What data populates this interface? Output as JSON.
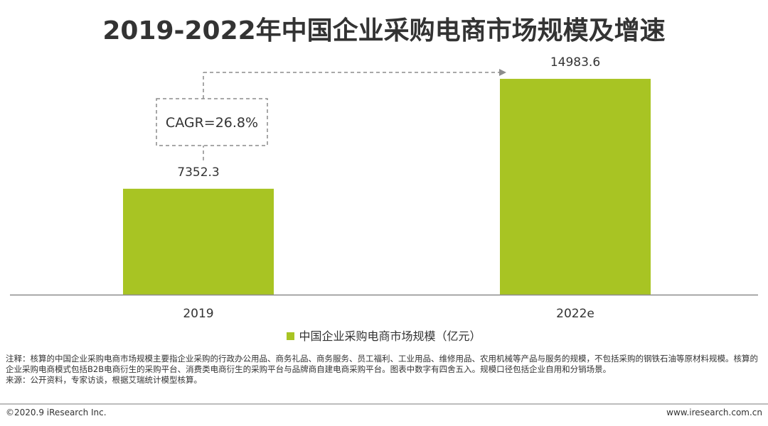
{
  "title": "2019-2022年中国企业采购电商市场规模及增速",
  "chart_data": {
    "type": "bar",
    "categories": [
      "2019",
      "2022e"
    ],
    "series": [
      {
        "name": "中国企业采购电商市场规模（亿元）",
        "values": [
          7352.3,
          14983.6
        ],
        "color": "#a8c423"
      }
    ],
    "data_labels": [
      "7352.3",
      "14983.6"
    ],
    "annotation": "CAGR=26.8%",
    "ylim": [
      0,
      17500
    ],
    "y_axis_visible": false,
    "grid": false,
    "legend_position": "bottom"
  },
  "notes": [
    "注释：核算的中国企业采购电商市场规模主要指企业采购的行政办公用品、商务礼品、商务服务、员工福利、工业用品、维修用品、农用机械等产品与服务的规模，不包括采购的钢铁石油等原材料规模。核算的企业采购电商模式包括B2B电商衍生的采购平台、消费类电商衍生的采购平台与品牌商自建电商采购平台。图表中数字有四舍五入。规模口径包括企业自用和分销场景。",
    "来源：公开资料，专家访谈，根据艾瑞统计模型核算。"
  ],
  "footer": {
    "copyright": "©2020.9 iResearch Inc.",
    "website": "www.iresearch.com.cn"
  }
}
